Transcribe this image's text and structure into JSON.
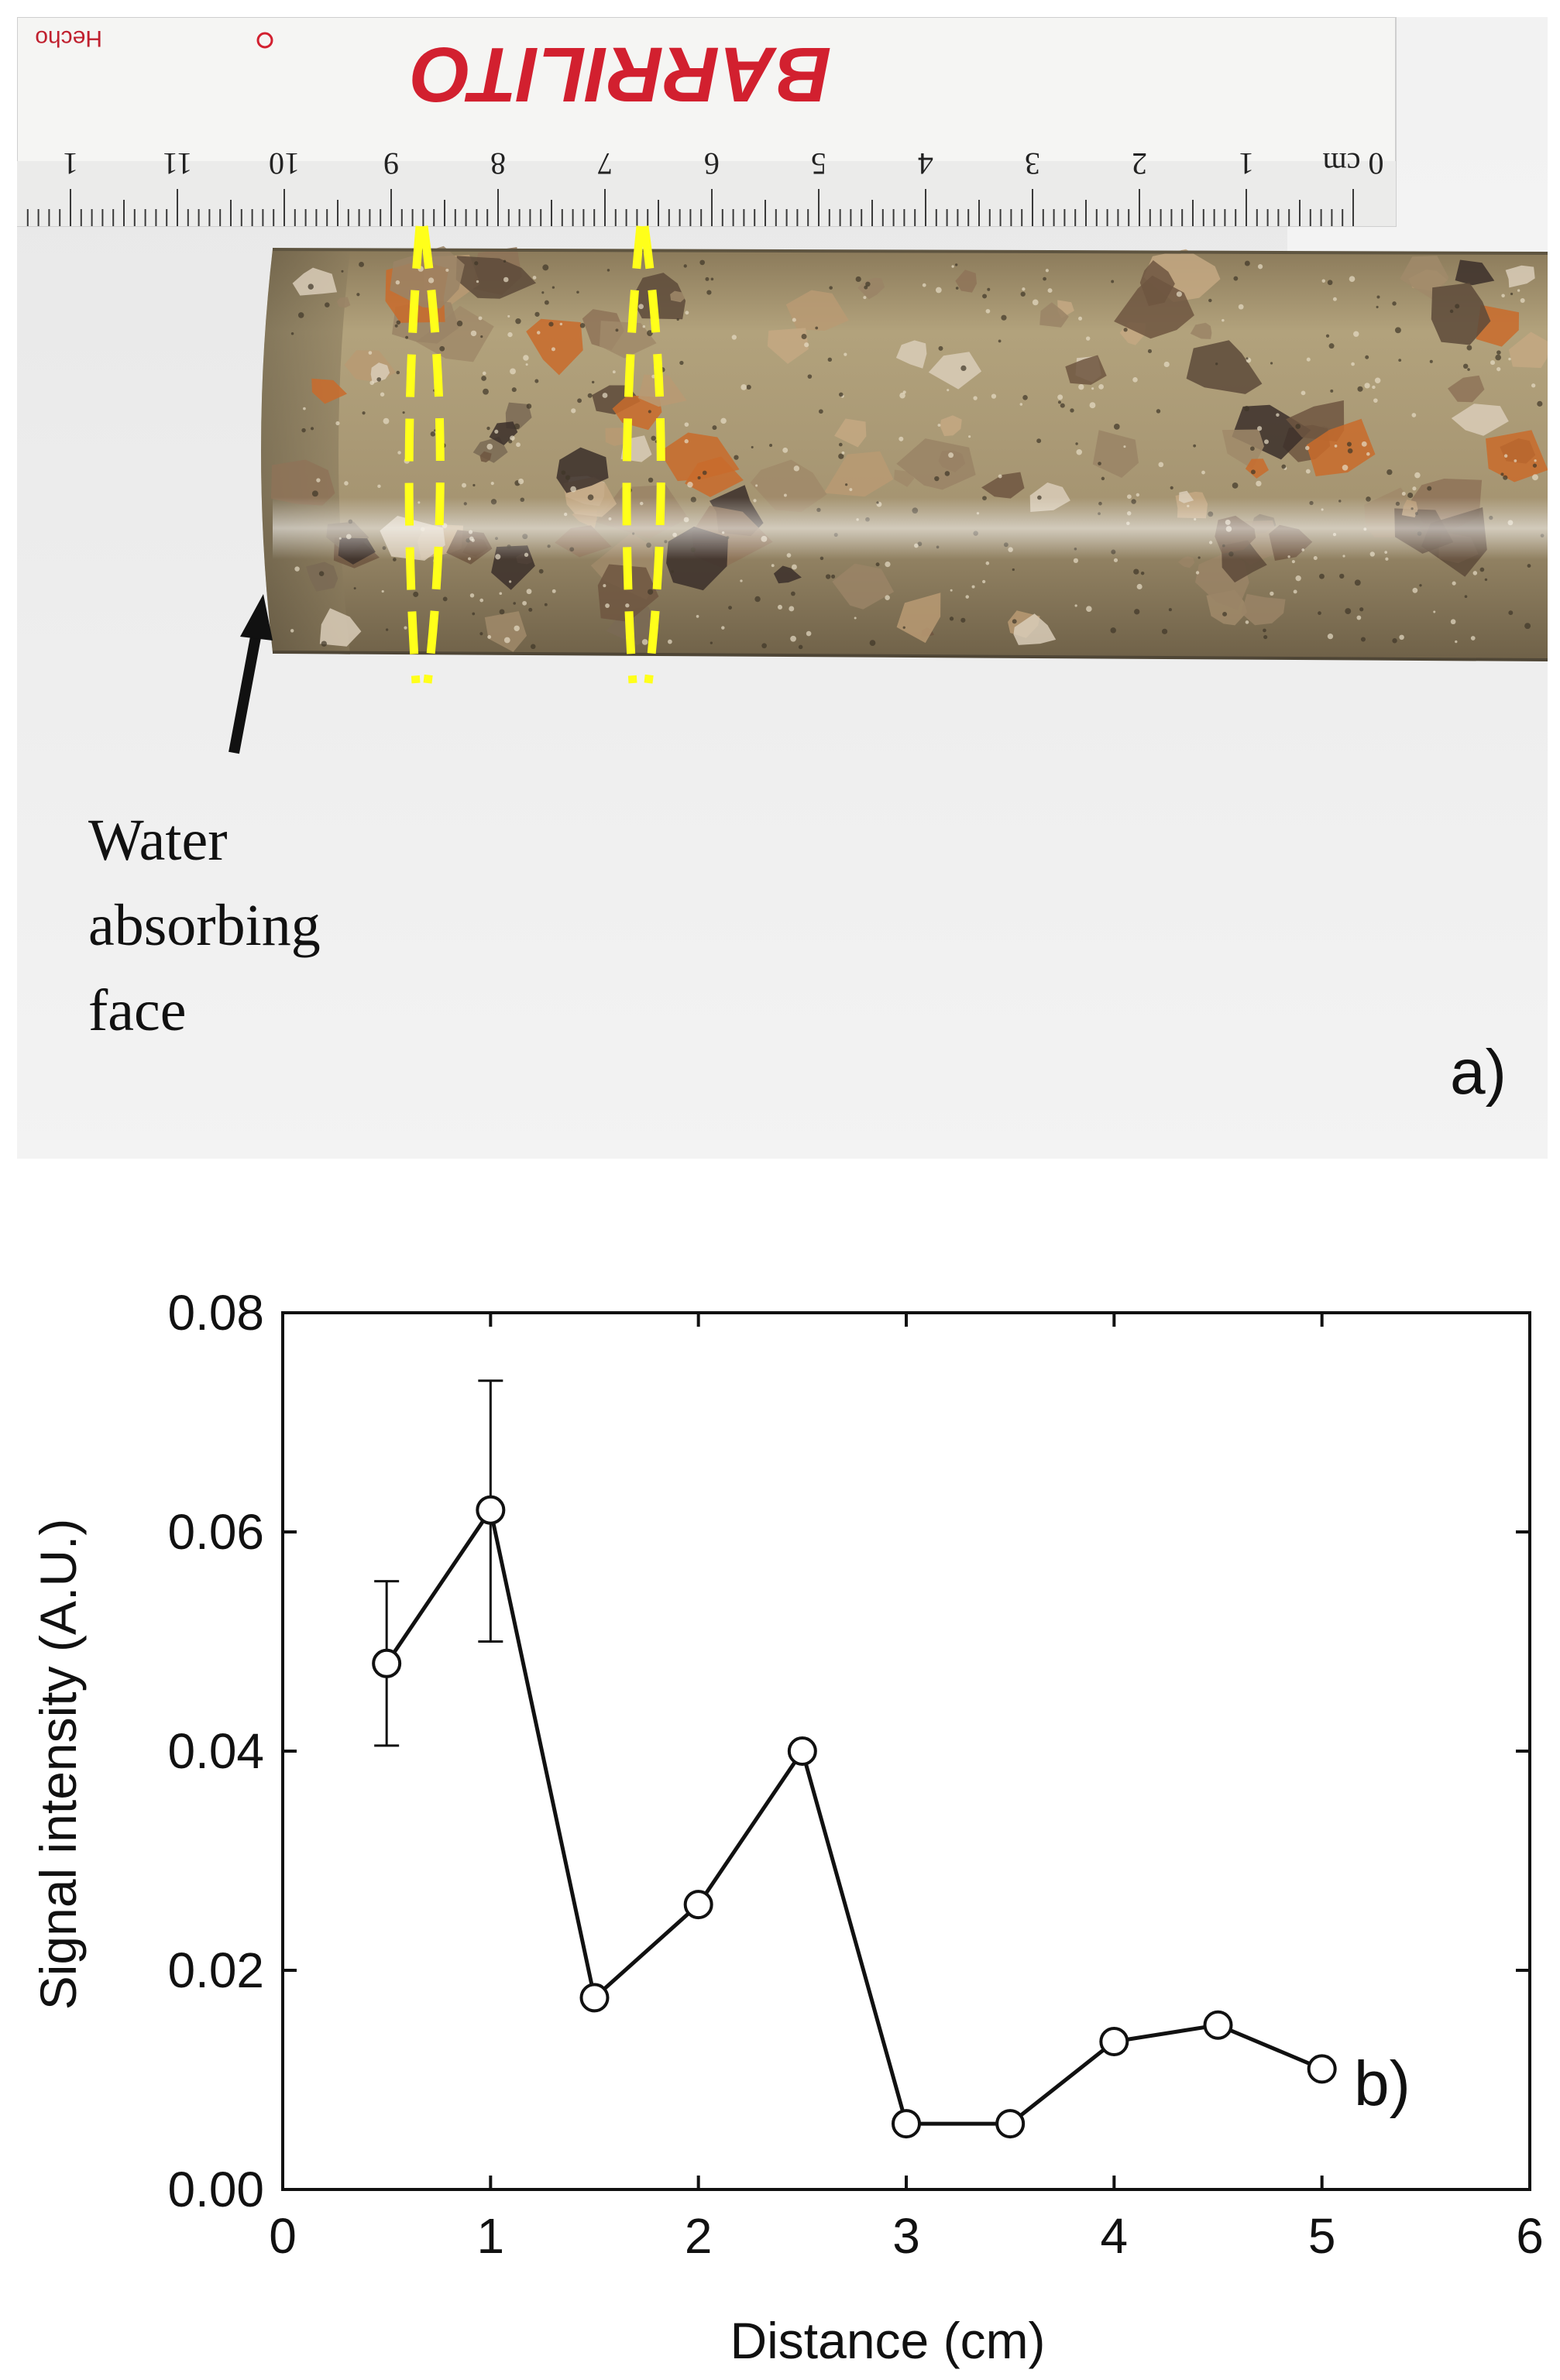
{
  "photo": {
    "brand_text": "BARRILITO",
    "ruler_small_text": "Hecho",
    "ruler_numbers": [
      "0 cm",
      "1",
      "2",
      "3",
      "4",
      "5",
      "6",
      "7",
      "8",
      "9",
      "10",
      "11",
      "1"
    ],
    "annotation_lines": [
      "Water",
      "absorbing",
      "face"
    ],
    "panel_label": "a)",
    "colors": {
      "background": "#efefef",
      "ruler": "#f4f4f2",
      "brand": "#d2202f",
      "core": "#a8976e",
      "dashed_markers": "#ffff1a",
      "arrow": "#111111"
    }
  },
  "chart_data": {
    "type": "line",
    "xlabel": "Distance (cm)",
    "ylabel": "Signal intensity (A.U.)",
    "xlim": [
      0,
      6
    ],
    "ylim": [
      0,
      0.08
    ],
    "xticks": [
      "0",
      "1",
      "2",
      "3",
      "4",
      "5",
      "6"
    ],
    "yticks": [
      "0.00",
      "0.02",
      "0.04",
      "0.06",
      "0.08"
    ],
    "grid": false,
    "marker": "open-circle",
    "panel_label": "b)",
    "x": [
      0.5,
      1.0,
      1.5,
      2.0,
      2.5,
      3.0,
      3.5,
      4.0,
      4.5,
      5.0
    ],
    "y": [
      0.048,
      0.062,
      0.0175,
      0.026,
      0.04,
      0.006,
      0.006,
      0.0135,
      0.015,
      0.011
    ],
    "error_bars": [
      {
        "x": 0.5,
        "low": 0.0405,
        "high": 0.0555
      },
      {
        "x": 1.0,
        "low": 0.05,
        "high": 0.0738
      }
    ]
  }
}
